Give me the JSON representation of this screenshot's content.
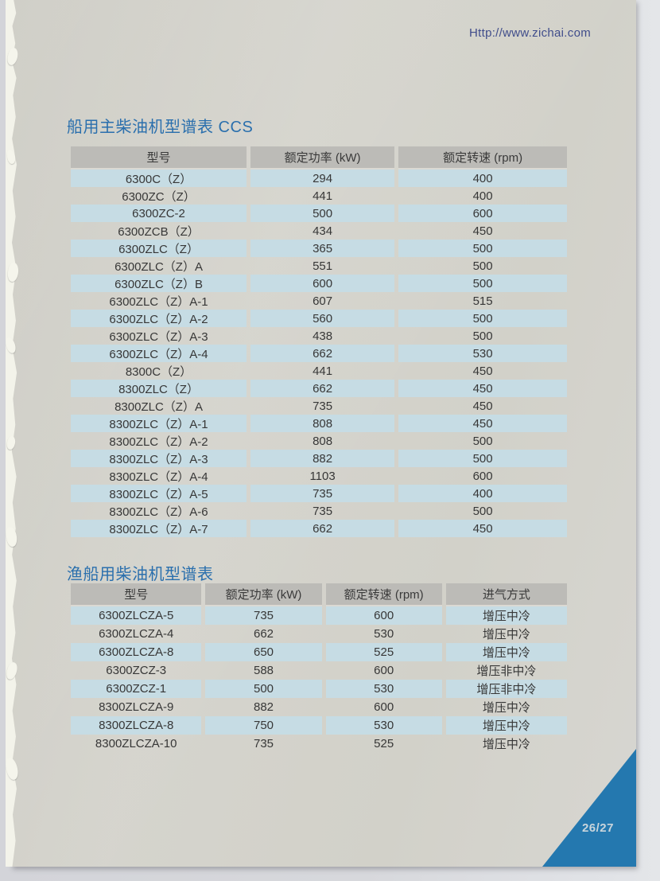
{
  "page": {
    "url": "Http://www.zichai.com",
    "page_number": "26/27"
  },
  "colors": {
    "title": "#2a6fad",
    "row_highlight": "#c6dce4",
    "header_bg": "#bcbbb7",
    "corner_triangle": "#2478af",
    "url_text": "#404d8b"
  },
  "tables": [
    {
      "title": "船用主柴油机型谱表 CCS",
      "columns": [
        "型号",
        "额定功率 (kW)",
        "额定转速 (rpm)"
      ],
      "rows": [
        [
          "6300C（Z）",
          "294",
          "400"
        ],
        [
          "6300ZC（Z）",
          "441",
          "400"
        ],
        [
          "6300ZC-2",
          "500",
          "600"
        ],
        [
          "6300ZCB（Z）",
          "434",
          "450"
        ],
        [
          "6300ZLC（Z）",
          "365",
          "500"
        ],
        [
          "6300ZLC（Z）A",
          "551",
          "500"
        ],
        [
          "6300ZLC（Z）B",
          "600",
          "500"
        ],
        [
          "6300ZLC（Z）A-1",
          "607",
          "515"
        ],
        [
          "6300ZLC（Z）A-2",
          "560",
          "500"
        ],
        [
          "6300ZLC（Z）A-3",
          "438",
          "500"
        ],
        [
          "6300ZLC（Z）A-4",
          "662",
          "530"
        ],
        [
          "8300C（Z）",
          "441",
          "450"
        ],
        [
          "8300ZLC（Z）",
          "662",
          "450"
        ],
        [
          "8300ZLC（Z）A",
          "735",
          "450"
        ],
        [
          "8300ZLC（Z）A-1",
          "808",
          "450"
        ],
        [
          "8300ZLC（Z）A-2",
          "808",
          "500"
        ],
        [
          "8300ZLC（Z）A-3",
          "882",
          "500"
        ],
        [
          "8300ZLC（Z）A-4",
          "1103",
          "600"
        ],
        [
          "8300ZLC（Z）A-5",
          "735",
          "400"
        ],
        [
          "8300ZLC（Z）A-6",
          "735",
          "500"
        ],
        [
          "8300ZLC（Z）A-7",
          "662",
          "450"
        ]
      ]
    },
    {
      "title": "渔船用柴油机型谱表",
      "columns": [
        "型号",
        "额定功率 (kW)",
        "额定转速 (rpm)",
        "进气方式"
      ],
      "rows": [
        [
          "6300ZLCZA-5",
          "735",
          "600",
          "增压中冷"
        ],
        [
          "6300ZLCZA-4",
          "662",
          "530",
          "增压中冷"
        ],
        [
          "6300ZLCZA-8",
          "650",
          "525",
          "增压中冷"
        ],
        [
          "6300ZCZ-3",
          "588",
          "600",
          "增压非中冷"
        ],
        [
          "6300ZCZ-1",
          "500",
          "530",
          "增压非中冷"
        ],
        [
          "8300ZLCZA-9",
          "882",
          "600",
          "增压中冷"
        ],
        [
          "8300ZLCZA-8",
          "750",
          "530",
          "增压中冷"
        ],
        [
          "8300ZLCZA-10",
          "735",
          "525",
          "增压中冷"
        ]
      ]
    }
  ]
}
